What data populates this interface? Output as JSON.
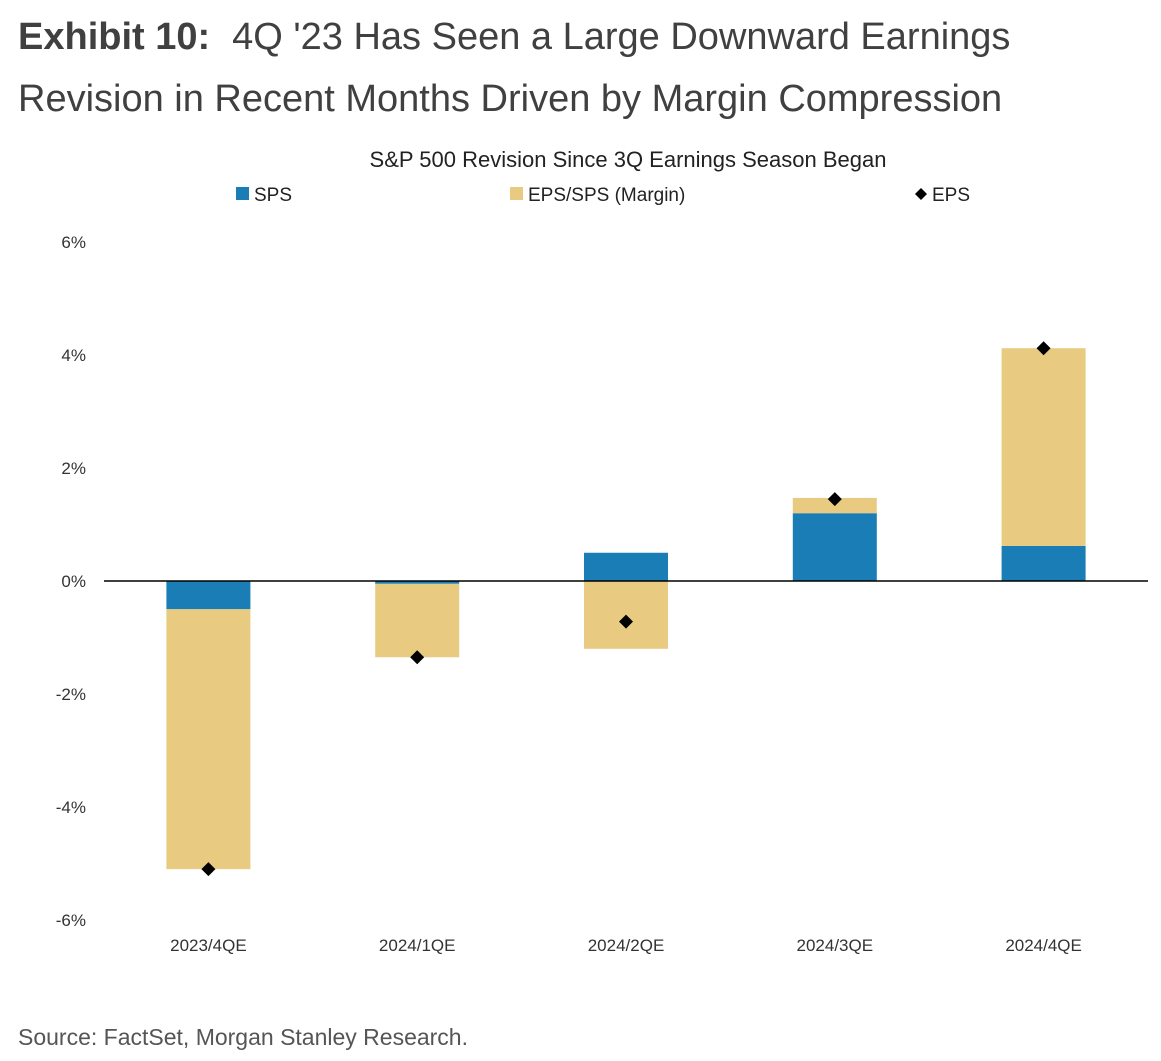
{
  "exhibit": {
    "label": "Exhibit 10:",
    "headline": "4Q '23 Has Seen a Large Downward Earnings Revision in Recent Months Driven by Margin Compression"
  },
  "source": "Source: FactSet, Morgan Stanley Research.",
  "colors": {
    "sps": "#1a7db5",
    "margin": "#e8cb80",
    "eps": "#000000"
  },
  "chart_data": {
    "type": "bar",
    "stacked": true,
    "title": "S&P 500 Revision Since 3Q Earnings Season Began",
    "categories": [
      "2023/4QE",
      "2024/1QE",
      "2024/2QE",
      "2024/3QE",
      "2024/4QE"
    ],
    "series": [
      {
        "name": "SPS",
        "type": "bar",
        "values": [
          -0.5,
          -0.05,
          0.5,
          1.2,
          0.62
        ]
      },
      {
        "name": "EPS/SPS (Margin)",
        "type": "bar",
        "values": [
          -4.6,
          -1.3,
          -1.2,
          0.27,
          3.5
        ]
      },
      {
        "name": "EPS",
        "type": "scatter",
        "marker": "diamond",
        "values": [
          -5.1,
          -1.35,
          -0.72,
          1.45,
          4.12
        ]
      }
    ],
    "ylim": [
      -6,
      6
    ],
    "yticks": [
      6,
      4,
      2,
      0,
      -2,
      -4,
      -6
    ],
    "ytick_labels": [
      "6%",
      "4%",
      "2%",
      "0%",
      "-2%",
      "-4%",
      "-6%"
    ],
    "legend_position": "top",
    "grid": false
  }
}
